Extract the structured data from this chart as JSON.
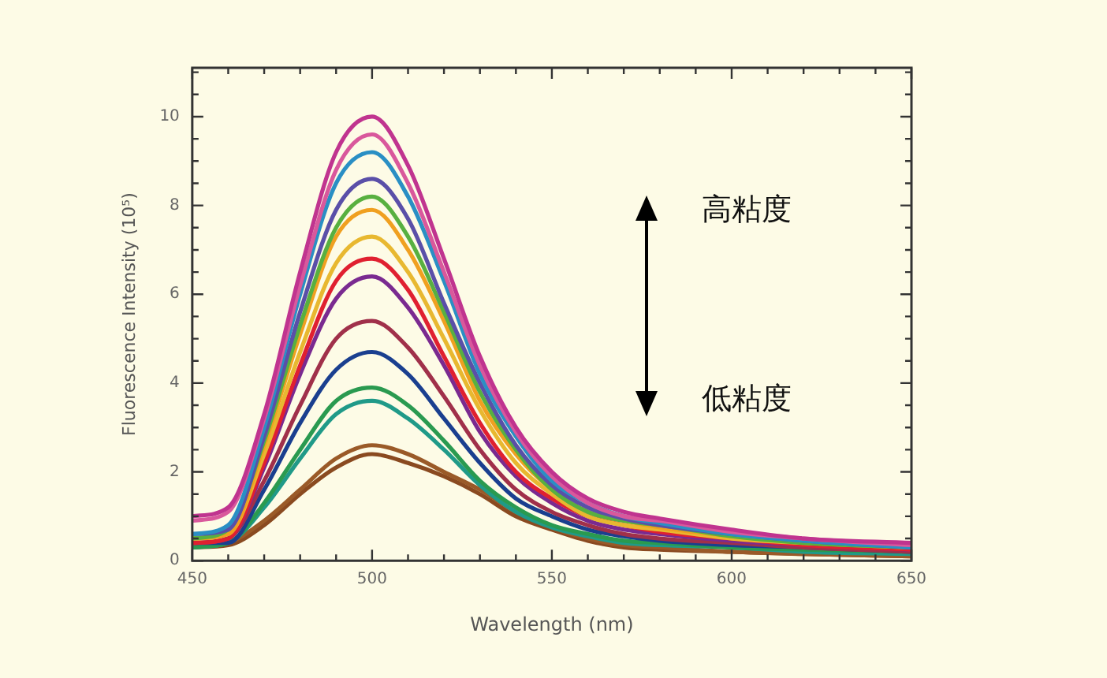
{
  "chart_data": {
    "type": "line",
    "xlabel": "Wavelength (nm)",
    "ylabel": "Fluorescence Intensity (10⁵)",
    "x": [
      450,
      460,
      470,
      480,
      490,
      500,
      510,
      520,
      530,
      540,
      550,
      560,
      570,
      580,
      600,
      620,
      650
    ],
    "xlim": [
      450,
      650
    ],
    "xticks": [
      450,
      {
        "value": 460,
        "label": null
      },
      {
        "value": 470,
        "label": null
      },
      {
        "value": 480,
        "label": null
      },
      {
        "value": 490,
        "label": null
      },
      500,
      {
        "value": 510,
        "label": null
      },
      {
        "value": 520,
        "label": null
      },
      {
        "value": 530,
        "label": null
      },
      {
        "value": 540,
        "label": null
      },
      550,
      {
        "value": 560,
        "label": null
      },
      {
        "value": 570,
        "label": null
      },
      {
        "value": 580,
        "label": null
      },
      {
        "value": 590,
        "label": null
      },
      600,
      {
        "value": 610,
        "label": null
      },
      {
        "value": 620,
        "label": null
      },
      {
        "value": 630,
        "label": null
      },
      {
        "value": 640,
        "label": null
      },
      650
    ],
    "ylim": [
      0,
      11.1
    ],
    "yticks": [
      0,
      {
        "value": 0.5,
        "label": null
      },
      {
        "value": 1,
        "label": null
      },
      {
        "value": 1.5,
        "label": null
      },
      2,
      {
        "value": 2.5,
        "label": null
      },
      {
        "value": 3,
        "label": null
      },
      {
        "value": 3.5,
        "label": null
      },
      4,
      {
        "value": 4.5,
        "label": null
      },
      {
        "value": 5,
        "label": null
      },
      {
        "value": 5.5,
        "label": null
      },
      6,
      {
        "value": 6.5,
        "label": null
      },
      {
        "value": 7,
        "label": null
      },
      {
        "value": 7.5,
        "label": null
      },
      8,
      {
        "value": 8.5,
        "label": null
      },
      {
        "value": 9,
        "label": null
      },
      {
        "value": 9.5,
        "label": null
      },
      10,
      {
        "value": 10.5,
        "label": null
      },
      {
        "value": 11,
        "label": null
      }
    ],
    "series": [
      {
        "color": "#c0348f",
        "values": [
          1.0,
          1.2,
          3.3,
          6.5,
          9.2,
          10.0,
          8.9,
          6.8,
          4.6,
          3.0,
          2.0,
          1.4,
          1.1,
          0.95,
          0.7,
          0.5,
          0.4
        ]
      },
      {
        "color": "#d9589c",
        "values": [
          0.9,
          1.1,
          3.2,
          6.2,
          8.8,
          9.6,
          8.5,
          6.5,
          4.4,
          2.9,
          1.9,
          1.3,
          1.0,
          0.9,
          0.65,
          0.5,
          0.35
        ]
      },
      {
        "color": "#2a8fc4",
        "values": [
          0.6,
          0.8,
          3.0,
          6.0,
          8.5,
          9.2,
          8.2,
          6.3,
          4.2,
          2.8,
          1.8,
          1.3,
          1.0,
          0.85,
          0.6,
          0.45,
          0.3
        ]
      },
      {
        "color": "#5a4fa8",
        "values": [
          0.6,
          0.7,
          2.8,
          5.6,
          7.9,
          8.6,
          7.7,
          5.8,
          4.0,
          2.6,
          1.7,
          1.2,
          0.95,
          0.8,
          0.6,
          0.45,
          0.3
        ]
      },
      {
        "color": "#58b040",
        "values": [
          0.5,
          0.7,
          2.7,
          5.3,
          7.5,
          8.2,
          7.3,
          5.6,
          3.8,
          2.5,
          1.6,
          1.1,
          0.9,
          0.8,
          0.55,
          0.4,
          0.3
        ]
      },
      {
        "color": "#f0a020",
        "values": [
          0.5,
          0.6,
          2.6,
          5.1,
          7.3,
          7.9,
          7.0,
          5.4,
          3.6,
          2.4,
          1.6,
          1.1,
          0.9,
          0.75,
          0.55,
          0.4,
          null
        ]
      },
      {
        "color": "#e8b830",
        "values": [
          0.5,
          0.6,
          2.4,
          4.7,
          6.7,
          7.3,
          6.5,
          5.0,
          3.4,
          2.2,
          1.5,
          1.0,
          0.8,
          0.7,
          0.5,
          0.4,
          0.3
        ]
      },
      {
        "color": "#e02030",
        "values": [
          0.4,
          0.5,
          2.2,
          4.4,
          6.3,
          6.8,
          6.1,
          4.6,
          3.1,
          2.0,
          1.4,
          1.0,
          0.8,
          0.65,
          0.5,
          0.35,
          0.25
        ]
      },
      {
        "color": "#7a2a90",
        "values": [
          0.4,
          0.5,
          2.1,
          4.2,
          5.9,
          6.4,
          5.7,
          4.4,
          2.9,
          1.9,
          1.3,
          0.9,
          0.7,
          0.6,
          0.45,
          0.35,
          0.25
        ]
      },
      {
        "color": "#a0304a",
        "values": [
          0.4,
          0.5,
          1.8,
          3.5,
          5.0,
          5.4,
          4.8,
          3.7,
          2.5,
          1.6,
          1.1,
          0.8,
          0.6,
          0.5,
          0.4,
          0.3,
          0.2
        ]
      },
      {
        "color": "#1a3f8f",
        "values": [
          0.4,
          0.4,
          1.6,
          3.1,
          4.3,
          4.7,
          4.2,
          3.2,
          2.2,
          1.4,
          1.0,
          0.7,
          0.55,
          0.45,
          0.35,
          0.3,
          0.2
        ]
      },
      {
        "color": "#2a9a50",
        "values": [
          0.3,
          0.4,
          1.3,
          2.5,
          3.6,
          3.9,
          3.5,
          2.7,
          1.8,
          1.2,
          0.8,
          0.6,
          0.45,
          0.4,
          0.3,
          0.25,
          0.2
        ]
      },
      {
        "color": "#209a88",
        "values": [
          0.3,
          0.4,
          1.2,
          2.3,
          3.3,
          3.6,
          3.2,
          2.5,
          1.7,
          1.1,
          0.75,
          0.55,
          0.4,
          0.35,
          0.3,
          0.2,
          0.15
        ]
      },
      {
        "color": "#9a5a28",
        "values": [
          0.3,
          0.4,
          0.9,
          1.6,
          2.3,
          2.6,
          2.4,
          2.0,
          1.6,
          1.1,
          0.75,
          0.5,
          0.35,
          0.3,
          0.2,
          0.15,
          0.1
        ]
      },
      {
        "color": "#8a4a20",
        "values": [
          0.3,
          0.35,
          0.8,
          1.5,
          2.1,
          2.4,
          2.2,
          1.9,
          1.5,
          1.0,
          0.7,
          0.45,
          0.3,
          0.25,
          0.2,
          0.15,
          0.1
        ]
      }
    ],
    "annotations": [
      "高粘度",
      "低粘度"
    ],
    "legend": false,
    "grid": false,
    "marker": "none",
    "line_style": "solid"
  }
}
